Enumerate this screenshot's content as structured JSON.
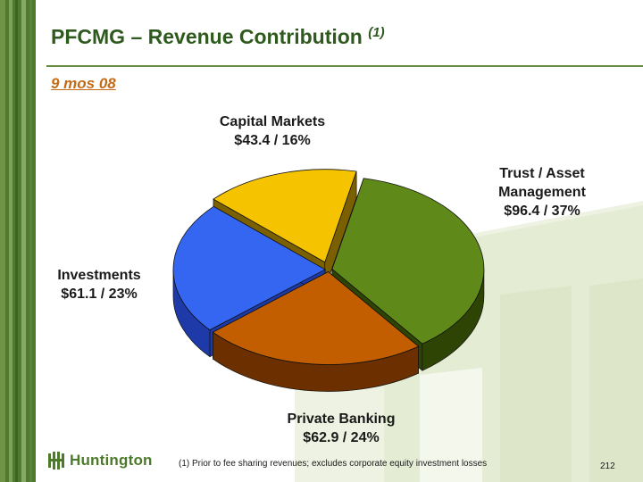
{
  "slide": {
    "title": "PFCMG – Revenue Contribution",
    "title_note": "(1)",
    "subtitle": "9 mos 08",
    "footnote": "(1)   Prior to fee sharing revenues; excludes corporate equity investment losses",
    "page_number": "212",
    "logo_text": "Huntington",
    "logo_icon": "huntington-logo-icon"
  },
  "chart_data": {
    "type": "pie",
    "title": "",
    "units": "$",
    "slices": [
      {
        "name": "Trust / Asset Management",
        "value": 96.4,
        "percent": 37,
        "label_lines": [
          "Trust / Asset",
          "Management",
          "$96.4 /  37%"
        ],
        "color": "#5f8a1a",
        "side_color": "#2e4405"
      },
      {
        "name": "Private Banking",
        "value": 62.9,
        "percent": 24,
        "label_lines": [
          "Private Banking",
          "$62.9 / 24%"
        ],
        "color": "#c25e00",
        "side_color": "#6b2f00"
      },
      {
        "name": "Investments",
        "value": 61.1,
        "percent": 23,
        "label_lines": [
          "Investments",
          "$61.1 / 23%"
        ],
        "color": "#3466f2",
        "side_color": "#1d3aa8"
      },
      {
        "name": "Capital Markets",
        "value": 43.4,
        "percent": 16,
        "label_lines": [
          "Capital Markets",
          "$43.4 / 16%"
        ],
        "color": "#f6c300",
        "side_color": "#7a6000"
      }
    ]
  }
}
